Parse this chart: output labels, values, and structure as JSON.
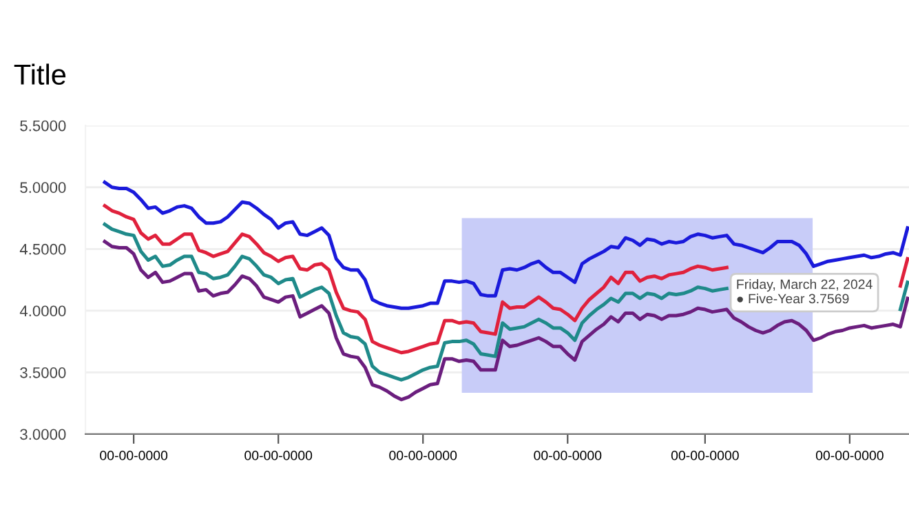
{
  "chart_data": {
    "type": "line",
    "title": "Title",
    "categories": [
      null,
      null,
      null,
      null,
      null,
      "00-00-0000",
      null,
      null,
      null,
      null,
      null,
      null,
      null,
      null,
      null,
      null,
      null,
      null,
      null,
      null,
      null,
      null,
      null,
      null,
      null,
      "00-00-0000",
      null,
      null,
      null,
      null,
      null,
      null,
      null,
      null,
      null,
      null,
      null,
      null,
      null,
      null,
      null,
      null,
      null,
      null,
      null,
      "00-00-0000",
      null,
      null,
      null,
      null,
      null,
      null,
      null,
      null,
      null,
      null,
      null,
      null,
      null,
      null,
      null,
      null,
      null,
      null,
      null,
      "00-00-0000",
      null,
      null,
      null,
      null,
      null,
      null,
      null,
      null,
      null,
      null,
      null,
      null,
      null,
      null,
      null,
      null,
      null,
      null,
      "00-00-0000",
      null,
      null,
      null,
      null,
      null,
      null,
      null,
      null,
      null,
      null,
      null,
      null,
      null,
      null,
      null,
      null,
      null,
      null,
      null,
      "00-00-0000",
      null,
      null,
      null,
      null,
      null,
      null,
      null,
      null
    ],
    "ylim": [
      3.0,
      5.5
    ],
    "yticks": [
      {
        "value": 3.0,
        "label": "3.0000"
      },
      {
        "value": 3.5,
        "label": "3.5000"
      },
      {
        "value": 4.0,
        "label": "4.0000"
      },
      {
        "value": 4.5,
        "label": "4.5000"
      },
      {
        "value": 5.0,
        "label": "5.0000"
      },
      {
        "value": 5.5,
        "label": "5.5000"
      }
    ],
    "grid": "y",
    "annotations": [
      "Friday, March 22, 2024\n● Five-Year 3.7569"
    ],
    "series": [
      {
        "color": "#1a1adb",
        "values": [
          null,
          5.04,
          5.0,
          4.99,
          4.99,
          4.96,
          4.9,
          4.83,
          4.84,
          4.79,
          4.81,
          4.84,
          4.85,
          4.83,
          4.76,
          4.71,
          4.71,
          4.72,
          4.76,
          4.82,
          4.88,
          4.87,
          4.83,
          4.78,
          4.74,
          4.67,
          4.71,
          4.72,
          4.62,
          4.61,
          4.64,
          4.67,
          4.61,
          4.42,
          4.35,
          4.33,
          4.33,
          4.25,
          4.09,
          4.06,
          4.04,
          4.03,
          4.02,
          4.02,
          4.03,
          4.04,
          4.06,
          4.06,
          4.24,
          4.24,
          4.23,
          4.24,
          4.22,
          4.13,
          4.12,
          4.12,
          4.33,
          4.34,
          4.33,
          4.35,
          4.38,
          4.4,
          4.35,
          4.31,
          4.31,
          4.27,
          4.23,
          4.38,
          4.42,
          4.45,
          4.48,
          4.52,
          4.51,
          4.59,
          4.57,
          4.53,
          4.58,
          4.57,
          4.54,
          4.56,
          4.55,
          4.56,
          4.6,
          4.62,
          4.61,
          4.59,
          4.6,
          4.61,
          4.54,
          4.53,
          4.51,
          4.49,
          4.47,
          4.51,
          4.56,
          4.56,
          4.56,
          4.53,
          4.46,
          4.36,
          4.38,
          4.4,
          4.41,
          4.42,
          4.43,
          4.44,
          4.45,
          4.43,
          4.44,
          4.46,
          4.47,
          4.45,
          4.67
        ]
      },
      {
        "color": "#e0213c",
        "values": [
          null,
          4.85,
          4.81,
          4.79,
          4.76,
          4.74,
          4.63,
          4.58,
          4.61,
          4.54,
          4.54,
          4.58,
          4.62,
          4.62,
          4.49,
          4.47,
          4.44,
          4.46,
          4.48,
          4.55,
          4.62,
          4.6,
          4.54,
          4.47,
          4.44,
          4.4,
          4.43,
          4.44,
          4.34,
          4.33,
          4.37,
          4.38,
          4.33,
          4.15,
          4.02,
          4.0,
          3.99,
          3.93,
          3.75,
          3.72,
          3.7,
          3.68,
          3.66,
          3.67,
          3.69,
          3.71,
          3.73,
          3.74,
          3.92,
          3.92,
          3.9,
          3.91,
          3.9,
          3.83,
          3.82,
          3.81,
          4.07,
          4.02,
          4.03,
          4.03,
          4.07,
          4.11,
          4.07,
          4.02,
          4.01,
          3.97,
          3.92,
          4.02,
          4.09,
          4.14,
          4.19,
          4.27,
          4.22,
          4.31,
          4.31,
          4.24,
          4.27,
          4.28,
          4.26,
          4.29,
          4.3,
          4.31,
          4.34,
          4.36,
          4.35,
          4.33,
          4.34,
          4.35,
          null,
          null,
          null,
          null,
          null,
          null,
          null,
          null,
          null,
          null,
          null,
          null,
          null,
          null,
          null,
          null,
          null,
          null,
          null,
          null,
          null,
          null,
          null,
          4.2,
          4.42
        ]
      },
      {
        "color": "#1f8a8a",
        "values": [
          null,
          4.7,
          4.66,
          4.64,
          4.62,
          4.61,
          4.48,
          4.41,
          4.44,
          4.36,
          4.37,
          4.41,
          4.44,
          4.44,
          4.31,
          4.3,
          4.26,
          4.27,
          4.29,
          4.36,
          4.44,
          4.42,
          4.36,
          4.29,
          4.27,
          4.22,
          4.25,
          4.26,
          4.11,
          4.14,
          4.17,
          4.19,
          4.14,
          3.96,
          3.82,
          3.79,
          3.78,
          3.73,
          3.55,
          3.5,
          3.48,
          3.46,
          3.44,
          3.46,
          3.49,
          3.52,
          3.54,
          3.55,
          3.74,
          3.75,
          3.75,
          3.76,
          3.73,
          3.65,
          3.64,
          3.63,
          3.9,
          3.85,
          3.86,
          3.87,
          3.9,
          3.93,
          3.9,
          3.86,
          3.86,
          3.82,
          3.76,
          3.9,
          3.96,
          4.01,
          4.05,
          4.1,
          4.07,
          4.14,
          4.14,
          4.1,
          4.14,
          4.13,
          4.1,
          4.14,
          4.13,
          4.14,
          4.16,
          4.19,
          4.18,
          4.16,
          4.17,
          4.18,
          null,
          null,
          null,
          null,
          null,
          null,
          null,
          null,
          null,
          null,
          null,
          null,
          null,
          null,
          null,
          null,
          null,
          null,
          null,
          null,
          null,
          null,
          null,
          4.01,
          4.23
        ]
      },
      {
        "color": "#6b1e7e",
        "values": [
          null,
          4.56,
          4.52,
          4.51,
          4.51,
          4.46,
          4.33,
          4.27,
          4.31,
          4.23,
          4.24,
          4.27,
          4.3,
          4.3,
          4.16,
          4.17,
          4.12,
          4.14,
          4.15,
          4.21,
          4.28,
          4.26,
          4.2,
          4.11,
          4.09,
          4.07,
          4.11,
          4.12,
          3.95,
          3.98,
          4.01,
          4.04,
          3.98,
          3.78,
          3.65,
          3.63,
          3.62,
          3.54,
          3.4,
          3.38,
          3.35,
          3.31,
          3.28,
          3.3,
          3.34,
          3.37,
          3.4,
          3.41,
          3.61,
          3.61,
          3.59,
          3.6,
          3.59,
          3.52,
          3.52,
          3.52,
          3.76,
          3.71,
          3.72,
          3.74,
          3.76,
          3.78,
          3.75,
          3.71,
          3.71,
          3.65,
          3.6,
          3.75,
          3.8,
          3.85,
          3.89,
          3.95,
          3.91,
          3.98,
          3.98,
          3.93,
          3.97,
          3.96,
          3.93,
          3.96,
          3.96,
          3.97,
          3.99,
          4.02,
          4.01,
          3.99,
          4.0,
          4.01,
          3.94,
          3.91,
          3.87,
          3.84,
          3.82,
          3.84,
          3.88,
          3.91,
          3.92,
          3.89,
          3.84,
          3.76,
          3.78,
          3.81,
          3.83,
          3.84,
          3.86,
          3.87,
          3.88,
          3.86,
          3.87,
          3.88,
          3.89,
          3.87,
          4.1
        ]
      }
    ]
  }
}
